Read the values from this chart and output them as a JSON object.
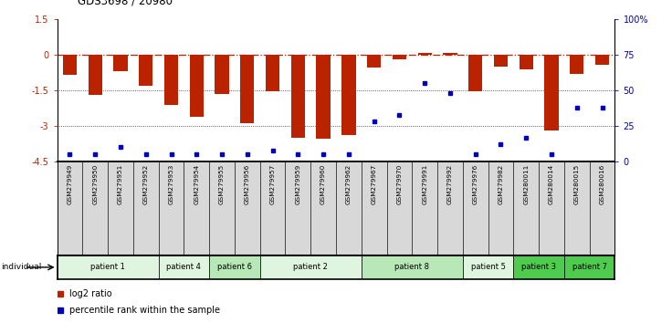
{
  "title": "GDS3698 / 20980",
  "samples": [
    "GSM279949",
    "GSM279950",
    "GSM279951",
    "GSM279952",
    "GSM279953",
    "GSM279954",
    "GSM279955",
    "GSM279956",
    "GSM279957",
    "GSM279959",
    "GSM279960",
    "GSM279962",
    "GSM279967",
    "GSM279970",
    "GSM279991",
    "GSM279992",
    "GSM279976",
    "GSM279982",
    "GSM280011",
    "GSM280014",
    "GSM280015",
    "GSM280016"
  ],
  "log2_ratio": [
    -0.85,
    -1.7,
    -0.7,
    -1.3,
    -2.1,
    -2.6,
    -1.65,
    -2.9,
    -1.55,
    -3.5,
    -3.55,
    -3.4,
    -0.55,
    -0.2,
    0.1,
    0.07,
    -1.55,
    -0.5,
    -0.6,
    -3.2,
    -0.8,
    -0.4
  ],
  "percentile_rank": [
    5,
    5,
    10,
    5,
    5,
    5,
    5,
    5,
    8,
    5,
    5,
    5,
    28,
    33,
    55,
    48,
    5,
    12,
    17,
    5,
    38,
    38
  ],
  "patients": [
    {
      "label": "patient 1",
      "start": 0,
      "end": 4,
      "color": "#e0f5e0"
    },
    {
      "label": "patient 4",
      "start": 4,
      "end": 6,
      "color": "#e0f5e0"
    },
    {
      "label": "patient 6",
      "start": 6,
      "end": 8,
      "color": "#b8e8b8"
    },
    {
      "label": "patient 2",
      "start": 8,
      "end": 12,
      "color": "#e0f5e0"
    },
    {
      "label": "patient 8",
      "start": 12,
      "end": 16,
      "color": "#b8e8b8"
    },
    {
      "label": "patient 5",
      "start": 16,
      "end": 18,
      "color": "#e0f5e0"
    },
    {
      "label": "patient 3",
      "start": 18,
      "end": 20,
      "color": "#4dcc4d"
    },
    {
      "label": "patient 7",
      "start": 20,
      "end": 22,
      "color": "#4dcc4d"
    }
  ],
  "ylim_left": [
    -4.5,
    1.5
  ],
  "ylim_right": [
    0,
    100
  ],
  "yticks_left": [
    -4.5,
    -3.0,
    -1.5,
    0,
    1.5
  ],
  "ytick_labels_left": [
    "-4.5",
    "-3",
    "-1.5",
    "0",
    "1.5"
  ],
  "yticks_right": [
    0,
    25,
    50,
    75,
    100
  ],
  "ytick_labels_right": [
    "0",
    "25",
    "50",
    "75",
    "100%"
  ],
  "bar_color": "#bb2200",
  "dot_color": "#0000bb",
  "bar_width": 0.55,
  "legend_items": [
    {
      "label": "log2 ratio",
      "color": "#bb2200"
    },
    {
      "label": "percentile rank within the sample",
      "color": "#0000bb"
    }
  ]
}
